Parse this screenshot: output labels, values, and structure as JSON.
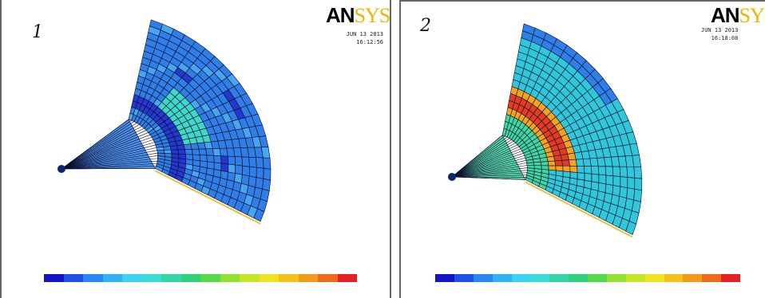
{
  "panels": [
    {
      "number": "1",
      "logo": {
        "left": "AN",
        "right": "SYS"
      },
      "date": "JUN 13 2013",
      "time": "16:12:56",
      "mesh_colors": {
        "base": "#2f7fe6",
        "band": "#2438cf",
        "highlight": "#3fd7c7",
        "light": "#46a7f0",
        "tip": "#0b2370",
        "rim": "#e8c23a"
      }
    },
    {
      "number": "2",
      "logo": {
        "left": "AN",
        "right": "SYS"
      },
      "date": "JUN 13 2013",
      "time": "16:18:08",
      "mesh_colors": {
        "base": "#2fc7d9",
        "band": "#e33c22",
        "highlight": "#f3a31c",
        "light": "#3fd7a0",
        "tip": "#0b2370",
        "rim": "#e8c23a"
      }
    }
  ],
  "legend_colors": [
    "#1515c8",
    "#1e50e6",
    "#2a86f0",
    "#2fb3f5",
    "#3cd2f2",
    "#38dcd4",
    "#34d6a6",
    "#2fd27a",
    "#55d84a",
    "#92e030",
    "#c6e624",
    "#eee31e",
    "#f2c21a",
    "#f39a1a",
    "#ee6a1c",
    "#e52020"
  ]
}
